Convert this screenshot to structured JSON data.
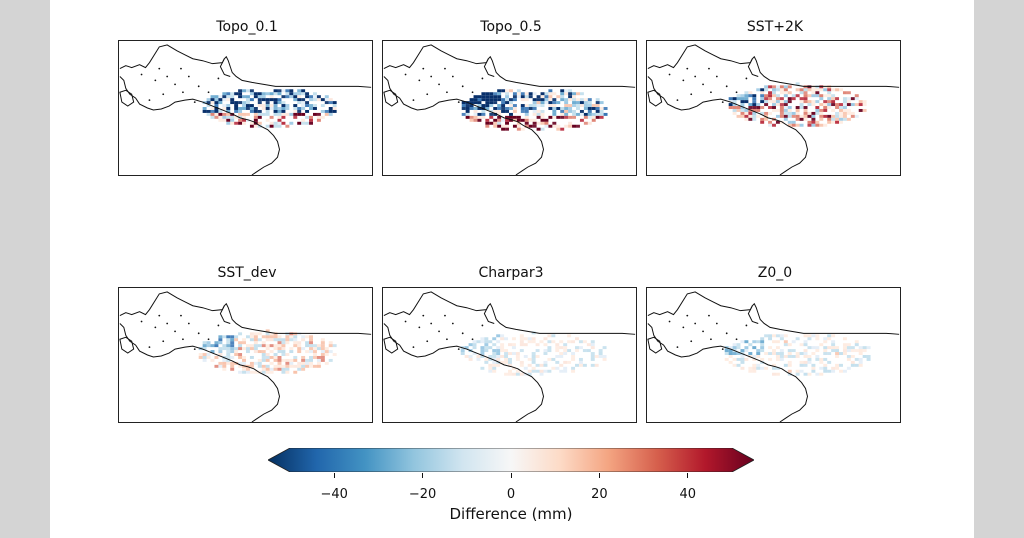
{
  "panels": [
    {
      "id": "p1",
      "title": "Topo_0.1"
    },
    {
      "id": "p2",
      "title": "Topo_0.5"
    },
    {
      "id": "p3",
      "title": "SST+2K"
    },
    {
      "id": "p4",
      "title": "SST_dev"
    },
    {
      "id": "p5",
      "title": "Charpar3"
    },
    {
      "id": "p6",
      "title": "Z0_0"
    }
  ],
  "colorbar": {
    "label": "Difference (mm)",
    "min": -50,
    "max": 50,
    "ticks": [
      -40,
      -20,
      0,
      20,
      40
    ],
    "tick_labels": [
      "−40",
      "−20",
      "0",
      "20",
      "40"
    ],
    "extend": "both",
    "colormap": "RdBu_r",
    "colors": [
      "#053061",
      "#2166ac",
      "#4393c3",
      "#92c5de",
      "#d1e5f0",
      "#f7f7f7",
      "#fddbc7",
      "#f4a582",
      "#d6604d",
      "#b2182b",
      "#67001f"
    ]
  }
}
